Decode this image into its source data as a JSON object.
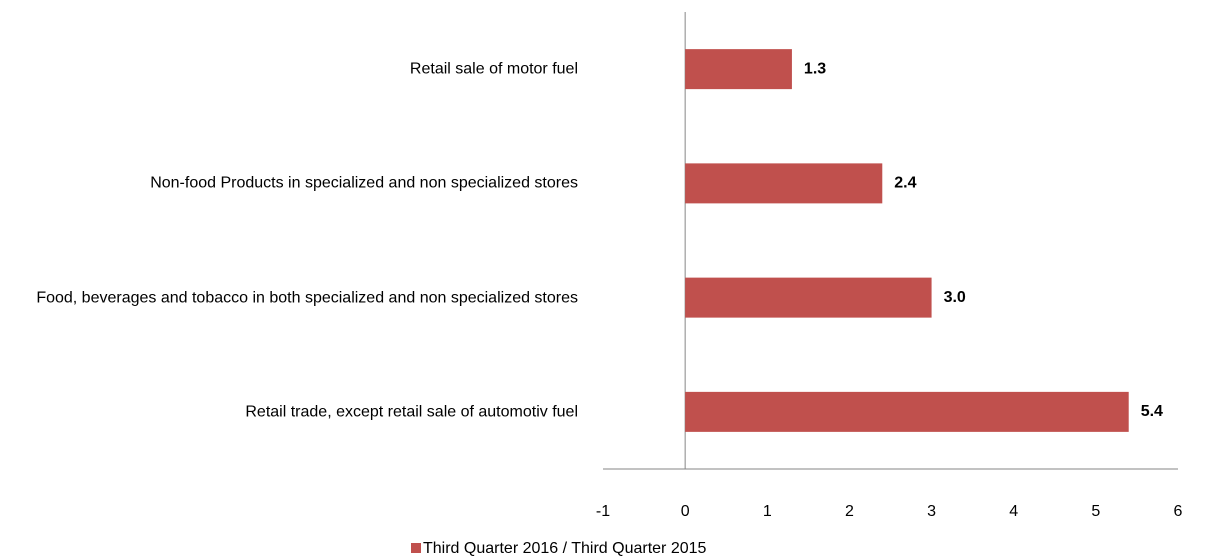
{
  "chart_data": {
    "type": "bar",
    "orientation": "horizontal",
    "categories": [
      "Retail sale of motor  fuel",
      "Non-food Products in specialized and non specialized stores",
      "Food, beverages and tobacco in both specialized and non specialized stores",
      "Retail trade, except retail sale of automotiv fuel"
    ],
    "series": [
      {
        "name": "Third Quarter 2016 / Third Quarter 2015",
        "color": "#c0504d",
        "values": [
          1.3,
          2.4,
          3.0,
          5.4
        ],
        "value_labels": [
          "1.3",
          "2.4",
          "3.0",
          "5.4"
        ]
      }
    ],
    "xlim": [
      -1,
      6
    ],
    "xticks": [
      -1,
      0,
      1,
      2,
      3,
      4,
      5,
      6
    ],
    "grid": false,
    "legend": "bottom"
  }
}
